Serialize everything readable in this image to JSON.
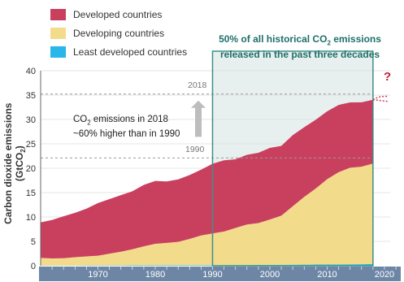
{
  "chart_data": {
    "type": "area",
    "stacked": true,
    "ylabel_main": "Carbon dioxide emissions (GtCO",
    "ylabel_sub": "2",
    "ylabel_tail": ")",
    "xlim": [
      1960,
      2021
    ],
    "ylim": [
      0,
      40
    ],
    "xticks": [
      "1970",
      "1980",
      "1990",
      "2000",
      "2010",
      "2020"
    ],
    "xtick_values": [
      1970,
      1980,
      1990,
      2000,
      2010,
      2020
    ],
    "yticks": [
      "0",
      "5",
      "10",
      "15",
      "20",
      "25",
      "30",
      "35",
      "40"
    ],
    "ytick_values": [
      0,
      5,
      10,
      15,
      20,
      25,
      30,
      35,
      40
    ],
    "x": [
      1960,
      1962,
      1964,
      1966,
      1968,
      1970,
      1972,
      1974,
      1976,
      1978,
      1980,
      1982,
      1984,
      1986,
      1988,
      1990,
      1992,
      1994,
      1996,
      1998,
      2000,
      2002,
      2004,
      2006,
      2008,
      2010,
      2012,
      2014,
      2016,
      2018
    ],
    "series": [
      {
        "name": "Least developed countries",
        "color": "#29b6e8",
        "values": [
          0.05,
          0.05,
          0.05,
          0.05,
          0.06,
          0.06,
          0.07,
          0.07,
          0.08,
          0.08,
          0.09,
          0.09,
          0.1,
          0.1,
          0.11,
          0.12,
          0.13,
          0.14,
          0.15,
          0.16,
          0.17,
          0.18,
          0.2,
          0.22,
          0.24,
          0.26,
          0.28,
          0.3,
          0.32,
          0.35
        ]
      },
      {
        "name": "Developing countries",
        "color": "#f2dc8c",
        "values": [
          1.55,
          1.45,
          1.5,
          1.7,
          1.85,
          2.0,
          2.4,
          2.8,
          3.3,
          3.9,
          4.4,
          4.6,
          4.8,
          5.4,
          6.1,
          6.5,
          6.9,
          7.6,
          8.3,
          8.6,
          9.3,
          10.1,
          12.0,
          13.9,
          15.6,
          17.5,
          18.9,
          19.8,
          20.0,
          20.6
        ]
      },
      {
        "name": "Developed countries",
        "color": "#c9405f",
        "values": [
          7.3,
          7.9,
          8.6,
          9.1,
          9.8,
          10.8,
          11.2,
          11.6,
          11.9,
          12.6,
          12.9,
          12.6,
          12.8,
          13.1,
          13.5,
          14.3,
          14.6,
          14.1,
          14.3,
          14.4,
          14.7,
          14.3,
          14.6,
          14.3,
          14.1,
          13.9,
          13.8,
          13.4,
          13.2,
          13.1
        ]
      }
    ],
    "reference_lines": [
      {
        "label": "2018",
        "y": 35.2
      },
      {
        "label": "1990",
        "y": 22.1
      }
    ],
    "highlight_region": {
      "x_start": 1990,
      "x_end": 2018,
      "title_line1": "50% of all historical CO",
      "title_sub": "2",
      "title_line1_tail": " emissions",
      "title_line2": "released in the past three decades"
    },
    "annotation": {
      "line1_pre": "CO",
      "line1_sub": "2",
      "line1_tail": " emissions in 2018",
      "line2": "~60% higher than in 1990"
    },
    "question_mark": "?",
    "legend_position": "top-left"
  }
}
